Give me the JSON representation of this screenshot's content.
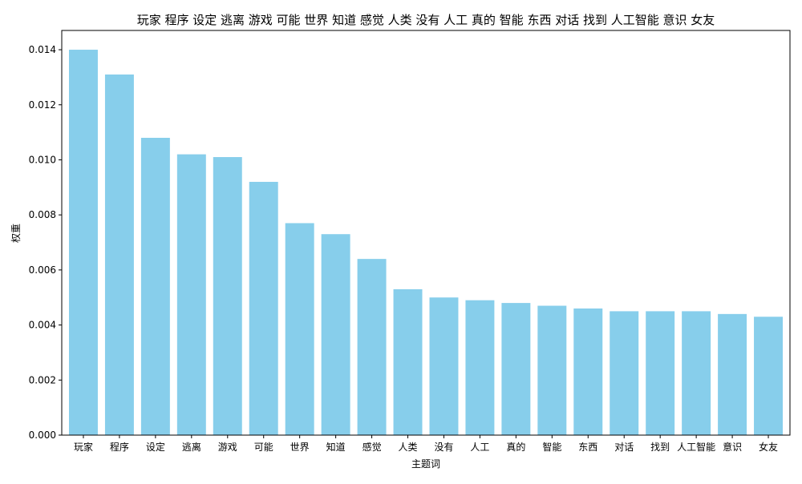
{
  "chart_data": {
    "type": "bar",
    "title": "玩家 程序 设定 逃离 游戏 可能 世界 知道 感觉 人类 没有 人工 真的 智能 东西 对话 找到 人工智能 意识 女友",
    "xlabel": "主题词",
    "ylabel": "权重",
    "categories": [
      "玩家",
      "程序",
      "设定",
      "逃离",
      "游戏",
      "可能",
      "世界",
      "知道",
      "感觉",
      "人类",
      "没有",
      "人工",
      "真的",
      "智能",
      "东西",
      "对话",
      "找到",
      "人工智能",
      "意识",
      "女友"
    ],
    "values": [
      0.014,
      0.0131,
      0.0108,
      0.0102,
      0.0101,
      0.0092,
      0.0077,
      0.0073,
      0.0064,
      0.0053,
      0.005,
      0.0049,
      0.0048,
      0.0047,
      0.0046,
      0.0045,
      0.0045,
      0.0045,
      0.0044,
      0.0043
    ],
    "ylim": [
      0,
      0.0147
    ],
    "yticks": [
      "0.000",
      "0.002",
      "0.004",
      "0.006",
      "0.008",
      "0.010",
      "0.012",
      "0.014"
    ],
    "bar_color": "#87CEEB",
    "grid": false,
    "legend": "none"
  }
}
